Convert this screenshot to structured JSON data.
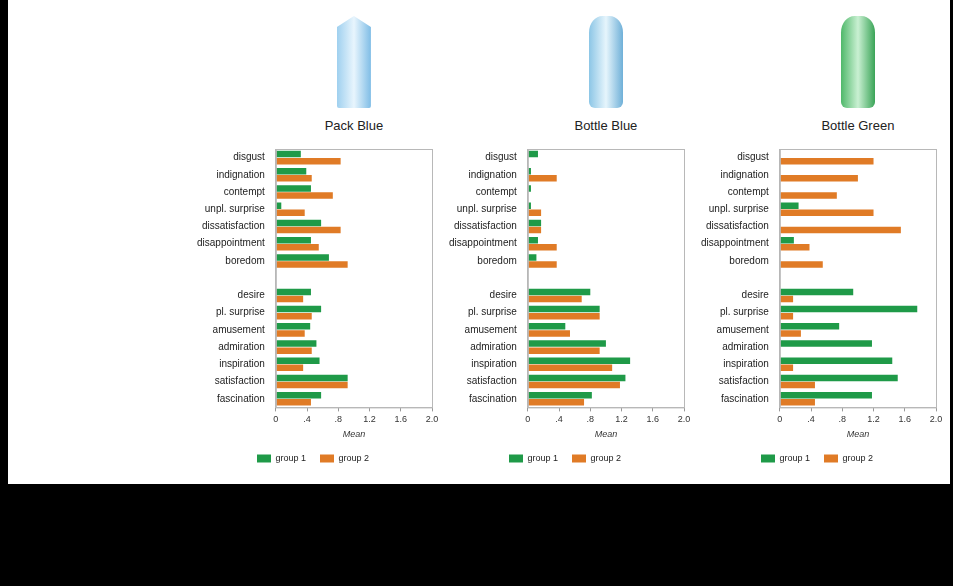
{
  "chart_data": [
    {
      "type": "bar",
      "title": "Pack Blue",
      "orientation": "horizontal",
      "categories": [
        "disgust",
        "indignation",
        "contempt",
        "unpl. surprise",
        "dissatisfaction",
        "disappointment",
        "boredom",
        null,
        "desire",
        "pl. surprise",
        "amusement",
        "admiration",
        "inspiration",
        "satisfaction",
        "fascination"
      ],
      "series": [
        {
          "name": "group 1",
          "color": "#1f9a48",
          "values": [
            0.32,
            0.39,
            0.45,
            0.07,
            0.58,
            0.45,
            0.68,
            null,
            0.45,
            0.58,
            0.44,
            0.52,
            0.56,
            0.92,
            0.58
          ]
        },
        {
          "name": "group 2",
          "color": "#e07b26",
          "values": [
            0.83,
            0.46,
            0.73,
            0.37,
            0.83,
            0.55,
            0.92,
            null,
            0.35,
            0.46,
            0.37,
            0.46,
            0.35,
            0.92,
            0.45
          ]
        }
      ],
      "x_label": "Mean",
      "xlim": [
        0,
        2
      ],
      "xticks": [
        0,
        {
          "value": 0.4,
          "label": ".4"
        },
        {
          "value": 0.8,
          "label": ".8"
        },
        1.2,
        1.6,
        {
          "value": 2,
          "label": "2.0"
        }
      ],
      "grid": false,
      "legend": "bottom"
    },
    {
      "type": "bar",
      "title": "Bottle Blue",
      "orientation": "horizontal",
      "categories": [
        "disgust",
        "indignation",
        "contempt",
        "unpl. surprise",
        "dissatisfaction",
        "disappointment",
        "boredom",
        null,
        "desire",
        "pl. surprise",
        "amusement",
        "admiration",
        "inspiration",
        "satisfaction",
        "fascination"
      ],
      "series": [
        {
          "name": "group 1",
          "color": "#1f9a48",
          "values": [
            0.13,
            0.04,
            0.04,
            0.04,
            0.17,
            0.13,
            0.11,
            null,
            0.8,
            0.92,
            0.48,
            1.0,
            1.31,
            1.25,
            0.82
          ]
        },
        {
          "name": "group 2",
          "color": "#e07b26",
          "values": [
            0,
            0.37,
            0,
            0.17,
            0.17,
            0.37,
            0.37,
            null,
            0.69,
            0.92,
            0.54,
            0.92,
            1.08,
            1.18,
            0.72
          ]
        }
      ],
      "x_label": "Mean",
      "xlim": [
        0,
        2
      ],
      "xticks": [
        0,
        {
          "value": 0.4,
          "label": ".4"
        },
        {
          "value": 0.8,
          "label": ".8"
        },
        1.2,
        1.6,
        {
          "value": 2,
          "label": "2.0"
        }
      ],
      "grid": false,
      "legend": "bottom"
    },
    {
      "type": "bar",
      "title": "Bottle Green",
      "orientation": "horizontal",
      "categories": [
        "disgust",
        "indignation",
        "contempt",
        "unpl. surprise",
        "dissatisfaction",
        "disappointment",
        "boredom",
        null,
        "desire",
        "pl. surprise",
        "amusement",
        "admiration",
        "inspiration",
        "satisfaction",
        "fascination"
      ],
      "series": [
        {
          "name": "group 1",
          "color": "#1f9a48",
          "values": [
            0,
            0,
            0,
            0.24,
            0,
            0.18,
            0,
            null,
            0.94,
            1.76,
            0.76,
            1.18,
            1.44,
            1.51,
            1.18
          ]
        },
        {
          "name": "group 2",
          "color": "#e07b26",
          "values": [
            1.2,
            1.0,
            0.73,
            1.2,
            1.55,
            0.38,
            0.55,
            null,
            0.17,
            0.17,
            0.27,
            0,
            0.17,
            0.45,
            0.45
          ]
        }
      ],
      "x_label": "Mean",
      "xlim": [
        0,
        2
      ],
      "xticks": [
        0,
        {
          "value": 0.4,
          "label": ".4"
        },
        {
          "value": 0.8,
          "label": ".8"
        },
        1.2,
        1.6,
        {
          "value": 2,
          "label": "2.0"
        }
      ],
      "grid": false,
      "legend": "bottom"
    }
  ]
}
